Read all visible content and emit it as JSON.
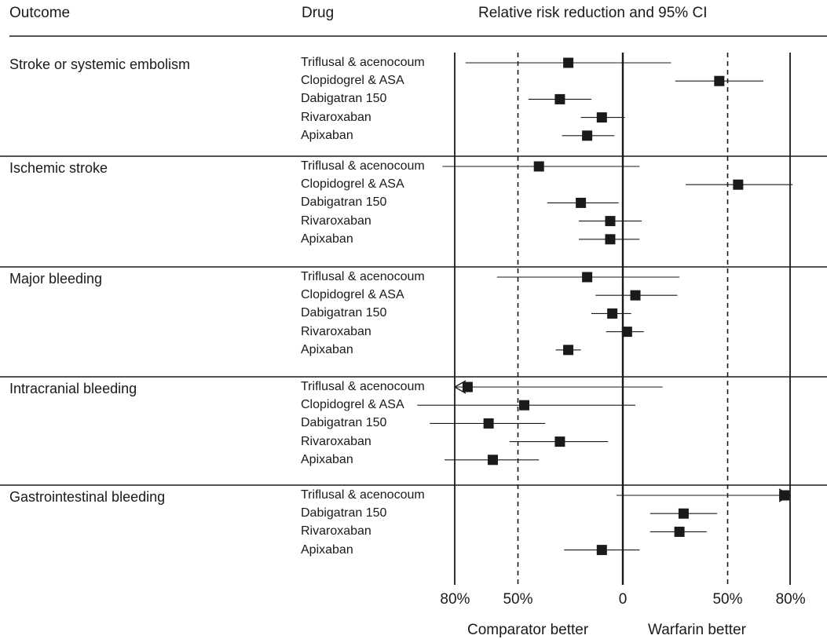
{
  "headers": {
    "outcome": "Outcome",
    "drug": "Drug",
    "rrr": "Relative risk reduction and 95% CI"
  },
  "direction_labels": {
    "left": "Comparator better",
    "right": "Warfarin better"
  },
  "colors": {
    "ink": "#1a1a1a",
    "marker": "#1a1a1a"
  },
  "chart_data": {
    "type": "forest",
    "xlabel": "Relative risk reduction and 95% CI",
    "xlim": [
      -80,
      80
    ],
    "xticks": [
      -80,
      -50,
      0,
      50,
      80
    ],
    "tick_labels": [
      "80%",
      "50%",
      "0",
      "50%",
      "80%"
    ],
    "reference_lines": [
      {
        "x": -50,
        "style": "dashed"
      },
      {
        "x": 0,
        "style": "solid"
      },
      {
        "x": 50,
        "style": "dashed"
      }
    ],
    "groups": [
      {
        "outcome": "Stroke or systemic embolism",
        "rows": [
          {
            "drug": "Triflusal & acenocoum",
            "est": -26,
            "lo": -75,
            "hi": 23
          },
          {
            "drug": "Clopidogrel & ASA",
            "est": 46,
            "lo": 25,
            "hi": 67
          },
          {
            "drug": "Dabigatran 150",
            "est": -30,
            "lo": -45,
            "hi": -15
          },
          {
            "drug": "Rivaroxaban",
            "est": -10,
            "lo": -20,
            "hi": 1
          },
          {
            "drug": "Apixaban",
            "est": -17,
            "lo": -29,
            "hi": -4
          }
        ]
      },
      {
        "outcome": "Ischemic stroke",
        "rows": [
          {
            "drug": "Triflusal & acenocoum",
            "est": -40,
            "lo": -86,
            "hi": 8
          },
          {
            "drug": "Clopidogrel & ASA",
            "est": 55,
            "lo": 30,
            "hi": 81
          },
          {
            "drug": "Dabigatran 150",
            "est": -20,
            "lo": -36,
            "hi": -2
          },
          {
            "drug": "Rivaroxaban",
            "est": -6,
            "lo": -21,
            "hi": 9
          },
          {
            "drug": "Apixaban",
            "est": -6,
            "lo": -21,
            "hi": 8
          }
        ]
      },
      {
        "outcome": "Major bleeding",
        "rows": [
          {
            "drug": "Triflusal & acenocoum",
            "est": -17,
            "lo": -60,
            "hi": 27
          },
          {
            "drug": "Clopidogrel & ASA",
            "est": 6,
            "lo": -13,
            "hi": 26
          },
          {
            "drug": "Dabigatran 150",
            "est": -5,
            "lo": -15,
            "hi": 4
          },
          {
            "drug": "Rivaroxaban",
            "est": 2,
            "lo": -8,
            "hi": 10
          },
          {
            "drug": "Apixaban",
            "est": -26,
            "lo": -32,
            "hi": -20
          }
        ]
      },
      {
        "outcome": "Intracranial bleeding",
        "rows": [
          {
            "drug": "Triflusal & acenocoum",
            "est": -74,
            "lo": -116,
            "hi": 19,
            "arrow_left": true
          },
          {
            "drug": "Clopidogrel & ASA",
            "est": -47,
            "lo": -98,
            "hi": 6
          },
          {
            "drug": "Dabigatran 150",
            "est": -64,
            "lo": -92,
            "hi": -37
          },
          {
            "drug": "Rivaroxaban",
            "est": -30,
            "lo": -54,
            "hi": -7
          },
          {
            "drug": "Apixaban",
            "est": -62,
            "lo": -85,
            "hi": -40
          }
        ]
      },
      {
        "outcome": "Gastrointestinal bleeding",
        "rows": [
          {
            "drug": "Triflusal & acenocoum",
            "est": 77,
            "lo": -3,
            "hi": 116,
            "arrow_right": true
          },
          {
            "drug": "Dabigatran 150",
            "est": 29,
            "lo": 13,
            "hi": 45
          },
          {
            "drug": "Rivaroxaban",
            "est": 27,
            "lo": 13,
            "hi": 40
          },
          {
            "drug": "Apixaban",
            "est": -10,
            "lo": -28,
            "hi": 8
          }
        ]
      }
    ]
  }
}
